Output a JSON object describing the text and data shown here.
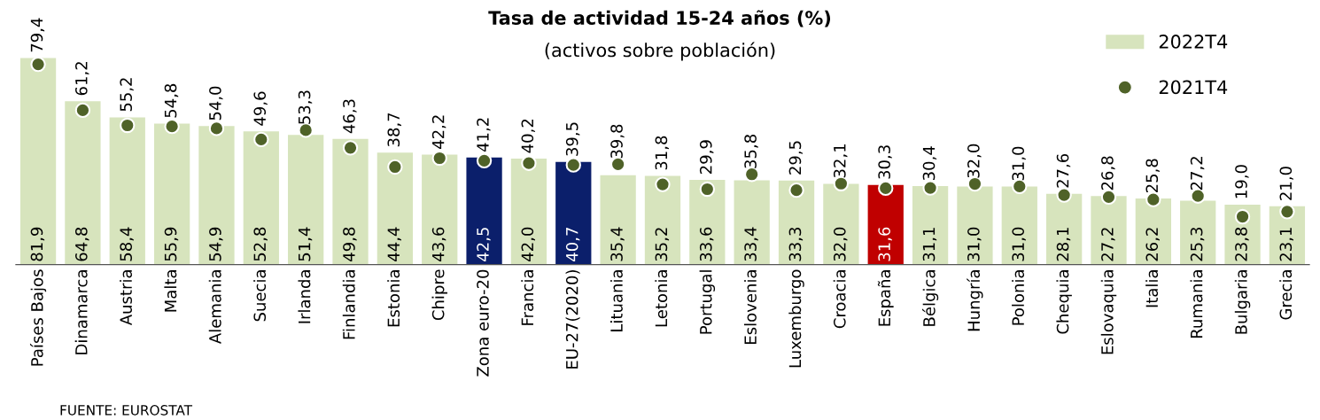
{
  "chart_data": {
    "type": "bar",
    "title": "Tasa de actividad 15-24 años (%)",
    "subtitle": "(activos sobre población)",
    "categories": [
      "Países Bajos",
      "Dinamarca",
      "Austria",
      "Malta",
      "Alemania",
      "Suecia",
      "Irlanda",
      "Finlandia",
      "Estonia",
      "Chipre",
      "Zona euro-20",
      "Francia",
      "EU-27(2020)",
      "Lituania",
      "Letonia",
      "Portugal",
      "Eslovenia",
      "Luxemburgo",
      "Croacia",
      "España",
      "Bélgica",
      "Hungría",
      "Polonia",
      "Chequia",
      "Eslovaquia",
      "Italia",
      "Rumania",
      "Bulgaria",
      "Grecia"
    ],
    "series": [
      {
        "name": "2022T4",
        "color": "#d7e4bd",
        "colors": [
          "#d7e4bd",
          "#d7e4bd",
          "#d7e4bd",
          "#d7e4bd",
          "#d7e4bd",
          "#d7e4bd",
          "#d7e4bd",
          "#d7e4bd",
          "#d7e4bd",
          "#d7e4bd",
          "#0b1f6b",
          "#d7e4bd",
          "#0b1f6b",
          "#d7e4bd",
          "#d7e4bd",
          "#d7e4bd",
          "#d7e4bd",
          "#d7e4bd",
          "#d7e4bd",
          "#c00000",
          "#d7e4bd",
          "#d7e4bd",
          "#d7e4bd",
          "#d7e4bd",
          "#d7e4bd",
          "#d7e4bd",
          "#d7e4bd",
          "#d7e4bd",
          "#d7e4bd"
        ],
        "values": [
          81.9,
          64.8,
          58.4,
          55.9,
          54.9,
          52.8,
          51.4,
          49.8,
          44.4,
          43.6,
          42.5,
          42.0,
          40.7,
          35.4,
          35.2,
          33.6,
          33.4,
          33.3,
          32.0,
          31.6,
          31.1,
          31.0,
          31.0,
          28.1,
          27.2,
          26.2,
          25.3,
          23.8,
          23.1
        ],
        "value_labels": [
          "81,9",
          "64,8",
          "58,4",
          "55,9",
          "54,9",
          "52,8",
          "51,4",
          "49,8",
          "44,4",
          "43,6",
          "42,5",
          "42,0",
          "40,7",
          "35,4",
          "35,2",
          "33,6",
          "33,4",
          "33,3",
          "32,0",
          "31,6",
          "31,1",
          "31,0",
          "31,0",
          "28,1",
          "27,2",
          "26,2",
          "25,3",
          "23,8",
          "23,1"
        ]
      },
      {
        "name": "2021T4",
        "type": "scatter",
        "color": "#4f6228",
        "values": [
          79.4,
          61.2,
          55.2,
          54.8,
          54.0,
          49.6,
          53.3,
          46.3,
          38.7,
          42.2,
          41.2,
          40.2,
          39.5,
          39.8,
          31.8,
          29.9,
          35.8,
          29.5,
          32.1,
          30.3,
          30.4,
          32.0,
          31.0,
          27.6,
          26.8,
          25.8,
          27.2,
          19.0,
          21.0
        ],
        "value_labels": [
          "79,4",
          "61,2",
          "55,2",
          "54,8",
          "54,0",
          "49,6",
          "53,3",
          "46,3",
          "38,7",
          "42,2",
          "41,2",
          "40,2",
          "39,5",
          "39,8",
          "31,8",
          "29,9",
          "35,8",
          "29,5",
          "32,1",
          "30,3",
          "30,4",
          "32,0",
          "31,0",
          "27,6",
          "26,8",
          "25,8",
          "27,2",
          "19,0",
          "21,0"
        ]
      }
    ],
    "tick_labels": "x",
    "legend": "top right",
    "marker": "circle",
    "annotations": [
      "FUENTE: EUROSTAT"
    ]
  }
}
